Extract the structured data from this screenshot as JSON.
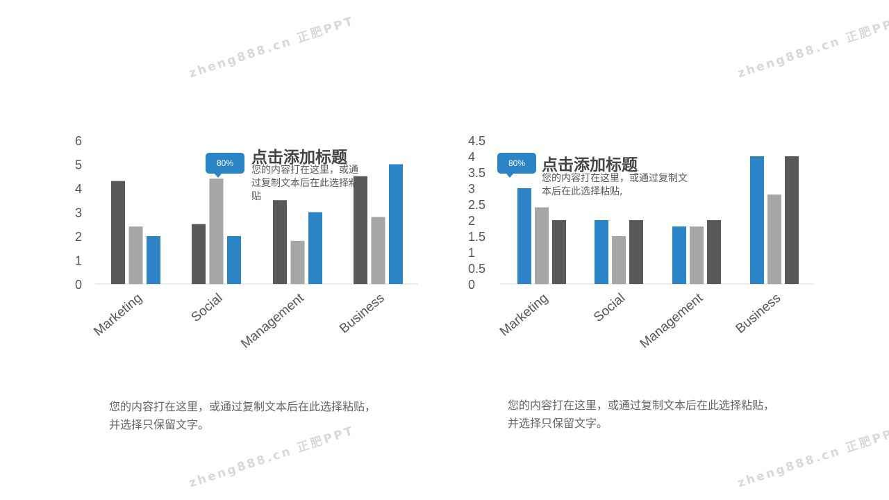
{
  "watermark": "zheng888.cn 正肥PPT",
  "colors": {
    "dark": "#595959",
    "gray": "#a6a6a6",
    "blue": "#2a84c6",
    "axis": "#d9d9d9"
  },
  "chart_data": [
    {
      "type": "bar",
      "title": "",
      "categories": [
        "Marketing",
        "Social",
        "Management",
        "Business"
      ],
      "series": [
        {
          "values": [
            4.3,
            2.5,
            3.5,
            4.5
          ],
          "color": "#595959"
        },
        {
          "values": [
            2.4,
            4.4,
            1.8,
            2.8
          ],
          "color": "#a6a6a6"
        },
        {
          "values": [
            2.0,
            2.0,
            3.0,
            5.0
          ],
          "color": "#2a84c6"
        }
      ],
      "ylim": [
        0,
        6
      ],
      "yticks": [
        0,
        1,
        2,
        3,
        4,
        5,
        6
      ],
      "ytick_labels": [
        "0",
        "1",
        "2",
        "3",
        "4",
        "5",
        "6"
      ],
      "grid": false,
      "legend": "none"
    },
    {
      "type": "bar",
      "title": "",
      "categories": [
        "Marketing",
        "Social",
        "Management",
        "Business"
      ],
      "series": [
        {
          "values": [
            3.0,
            2.0,
            1.8,
            4.0
          ],
          "color": "#2a84c6"
        },
        {
          "values": [
            2.4,
            1.5,
            1.8,
            2.8
          ],
          "color": "#a6a6a6"
        },
        {
          "values": [
            2.0,
            2.0,
            2.0,
            4.0
          ],
          "color": "#595959"
        }
      ],
      "ylim": [
        0,
        4.5
      ],
      "yticks": [
        0,
        0.5,
        1,
        1.5,
        2,
        2.5,
        3,
        3.5,
        4,
        4.5
      ],
      "ytick_labels": [
        "0",
        "0.5",
        "1",
        "1.5",
        "2",
        "2.5",
        "3",
        "3.5",
        "4",
        "4.5"
      ],
      "grid": false,
      "legend": "none"
    }
  ],
  "callouts": [
    {
      "badge": "80%",
      "title": "点击添加标题",
      "body": "您的内容打在这里，或通过复制文本后在此选择粘贴"
    },
    {
      "badge": "80%",
      "title": "点击添加标题",
      "body": "您的内容打在这里，或通过复制文本后在此选择粘贴,"
    }
  ],
  "captions": [
    {
      "line1": "您的内容打在这里，或通过复制文本后在此选择粘贴，",
      "line2": "并选择只保留文字。"
    },
    {
      "line1": "您的内容打在这里，或通过复制文本后在此选择粘贴，",
      "line2": "并选择只保留文字。"
    }
  ]
}
